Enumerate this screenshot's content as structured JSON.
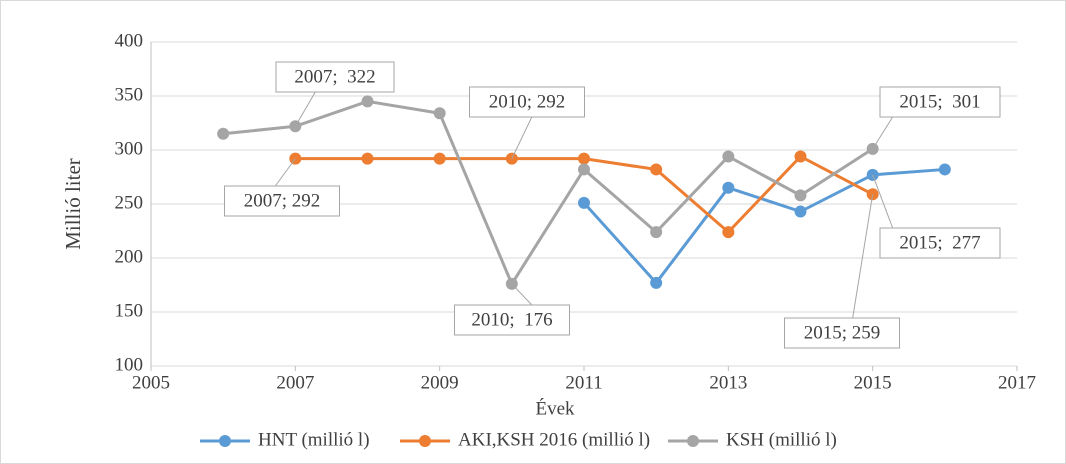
{
  "chart_data": {
    "type": "line",
    "x": [
      2006,
      2007,
      2008,
      2009,
      2010,
      2011,
      2012,
      2013,
      2014,
      2015,
      2016
    ],
    "series": [
      {
        "name": "HNT (millió l)",
        "color": "#5b9bd5",
        "values": [
          null,
          null,
          null,
          null,
          null,
          251,
          177,
          265,
          243,
          277,
          282
        ]
      },
      {
        "name": "AKI,KSH 2016 (millió l)",
        "color": "#ed7d31",
        "values": [
          null,
          292,
          292,
          292,
          292,
          292,
          282,
          224,
          294,
          259,
          null
        ]
      },
      {
        "name": "KSH (millió l)",
        "color": "#a5a5a5",
        "values": [
          315,
          322,
          345,
          334,
          176,
          282,
          224,
          294,
          258,
          301,
          null
        ]
      }
    ],
    "xlabel": "Évek",
    "ylabel": "Millió liter",
    "xlim": [
      2005,
      2017
    ],
    "xticks": [
      2005,
      2007,
      2009,
      2011,
      2013,
      2015,
      2017
    ],
    "ylim": [
      100,
      400
    ],
    "yticks": [
      100,
      150,
      200,
      250,
      300,
      350,
      400
    ],
    "grid": true,
    "legend": "bottom",
    "annotations": [
      "2007;  322",
      "2010; 292",
      "2015;  301",
      "2007; 292",
      "2010;  176",
      "2015;  277",
      "2015; 259"
    ]
  }
}
